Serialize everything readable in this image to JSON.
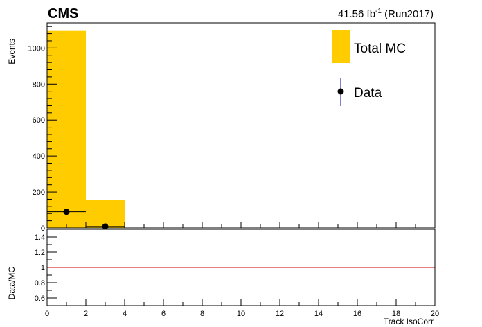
{
  "header": {
    "experiment": "CMS",
    "lumi_value": "41.56 fb",
    "lumi_exponent": "-1",
    "lumi_run": " (Run2017)"
  },
  "legend": {
    "mc_label": "Total MC",
    "data_label": "Data"
  },
  "colors": {
    "mc_fill": "#FFCC00",
    "data_marker": "#000000",
    "data_error": "#000099",
    "ratio_line": "#CC0000"
  },
  "chart_data": [
    {
      "type": "bar",
      "panel": "main",
      "ylabel": "Events",
      "xlim": [
        0,
        20
      ],
      "ylim": [
        0,
        1140
      ],
      "bin_edges": [
        0,
        2,
        4
      ],
      "series": [
        {
          "name": "Total MC",
          "type": "histogram",
          "values": [
            1095,
            155
          ]
        },
        {
          "name": "Data",
          "type": "points",
          "x": [
            1,
            3
          ],
          "y": [
            90,
            8
          ],
          "xerr": [
            1,
            1
          ]
        }
      ],
      "yticks": [
        "0",
        "200",
        "400",
        "600",
        "800",
        "1000"
      ]
    },
    {
      "type": "line",
      "panel": "ratio",
      "ylabel": "Data/MC",
      "xlabel": "Track IsoCorr",
      "xlim": [
        0,
        20
      ],
      "ylim": [
        0.5,
        1.5
      ],
      "reference_line": 1,
      "yticks": [
        "0.6",
        "0.8",
        "1",
        "1.2",
        "1.4"
      ],
      "xticks": [
        "0",
        "2",
        "4",
        "6",
        "8",
        "10",
        "12",
        "14",
        "16",
        "18",
        "20"
      ]
    }
  ]
}
